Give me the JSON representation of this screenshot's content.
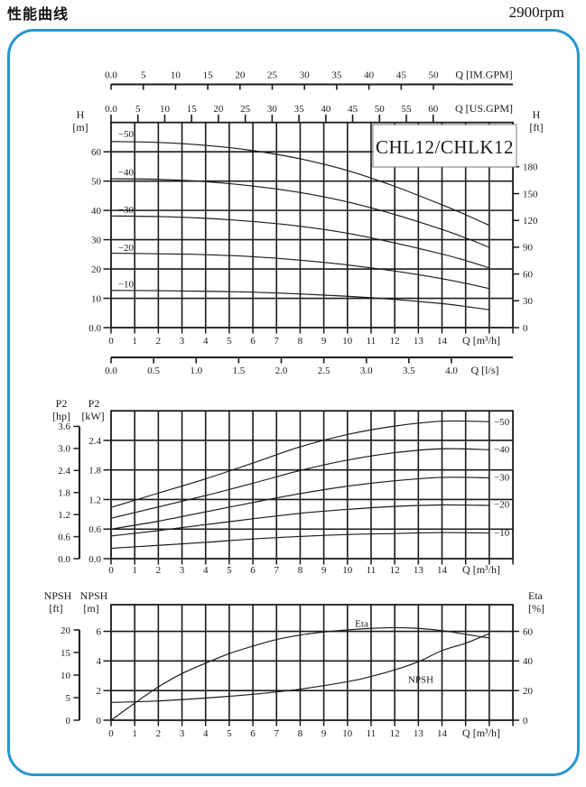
{
  "header": {
    "title": "性能曲线",
    "rpm": "2900rpm"
  },
  "model": "CHL12/CHLK12",
  "colors": {
    "panel_border": "#2697cd",
    "ink": "#1a1a1a",
    "box_border": "#777777"
  },
  "chart_data": [
    {
      "id": "head-flow",
      "type": "line",
      "title_box": "CHL12/CHLK12",
      "x_axis": {
        "label": "Q [m³/h]",
        "tick_labels": [
          "0",
          "1",
          "2",
          "3",
          "4",
          "5",
          "6",
          "7",
          "8",
          "9",
          "10",
          "11",
          "12",
          "13",
          "14"
        ],
        "tick_values": [
          0,
          1,
          2,
          3,
          4,
          5,
          6,
          7,
          8,
          9,
          10,
          11,
          12,
          13,
          14
        ],
        "range": [
          0,
          17
        ]
      },
      "top_rulers": [
        {
          "name": "imperial-gpm",
          "label": "Q [IM.GPM]",
          "tick_labels": [
            "0.0",
            "5",
            "10",
            "15",
            "20",
            "25",
            "30",
            "35",
            "40",
            "45",
            "50"
          ],
          "tick_values": [
            0,
            5,
            10,
            15,
            20,
            25,
            30,
            35,
            40,
            45,
            50
          ],
          "m3h_per_unit": 0.27276
        },
        {
          "name": "us-gpm",
          "label": "Q [US.GPM]",
          "tick_labels": [
            "0.0",
            "5",
            "10",
            "15",
            "20",
            "25",
            "30",
            "35",
            "40",
            "45",
            "50",
            "55",
            "60"
          ],
          "tick_values": [
            0,
            5,
            10,
            15,
            20,
            25,
            30,
            35,
            40,
            45,
            50,
            55,
            60
          ],
          "m3h_per_unit": 0.22712
        }
      ],
      "bottom_ruler": {
        "name": "liters-per-second",
        "label": "Q [l/s]",
        "tick_labels": [
          "0.0",
          "0.5",
          "1.0",
          "1.5",
          "2.0",
          "2.5",
          "3.0",
          "3.5",
          "4.0"
        ],
        "tick_values": [
          0,
          0.5,
          1,
          1.5,
          2,
          2.5,
          3,
          3.5,
          4
        ],
        "m3h_per_unit": 3.6
      },
      "y_axis": {
        "name": "H",
        "unit": "[m]",
        "tick_labels": [
          "0.0",
          "10",
          "20",
          "30",
          "40",
          "50",
          "60"
        ],
        "tick_values": [
          0,
          10,
          20,
          30,
          40,
          50,
          60
        ],
        "range": [
          0,
          70
        ]
      },
      "y_axis_right": {
        "name": "H",
        "unit": "[ft]",
        "tick_labels": [
          "0",
          "30",
          "60",
          "90",
          "120",
          "150",
          "180"
        ],
        "tick_values": [
          0,
          30,
          60,
          90,
          120,
          150,
          180
        ],
        "m_per_unit": 0.3048
      },
      "series": [
        {
          "label": "−10",
          "points": [
            [
              0,
              12.7
            ],
            [
              2,
              12.6
            ],
            [
              4,
              12.4
            ],
            [
              6,
              12.1
            ],
            [
              8,
              11.5
            ],
            [
              10,
              10.7
            ],
            [
              12,
              9.6
            ],
            [
              14,
              8.2
            ],
            [
              15,
              7.2
            ],
            [
              16,
              6.1
            ]
          ]
        },
        {
          "label": "−20",
          "points": [
            [
              0,
              25.4
            ],
            [
              2,
              25.2
            ],
            [
              4,
              24.9
            ],
            [
              6,
              24.2
            ],
            [
              8,
              23.0
            ],
            [
              10,
              21.4
            ],
            [
              12,
              19.3
            ],
            [
              14,
              16.7
            ],
            [
              15,
              15.1
            ],
            [
              16,
              13.3
            ]
          ]
        },
        {
          "label": "−30",
          "points": [
            [
              0,
              38.1
            ],
            [
              2,
              37.9
            ],
            [
              4,
              37.3
            ],
            [
              6,
              36.2
            ],
            [
              8,
              34.6
            ],
            [
              10,
              32.2
            ],
            [
              12,
              28.9
            ],
            [
              14,
              25.1
            ],
            [
              15,
              22.9
            ],
            [
              16,
              20.4
            ]
          ]
        },
        {
          "label": "−40",
          "points": [
            [
              0,
              50.8
            ],
            [
              2,
              50.6
            ],
            [
              4,
              49.8
            ],
            [
              6,
              48.3
            ],
            [
              8,
              46.1
            ],
            [
              10,
              42.9
            ],
            [
              12,
              38.6
            ],
            [
              14,
              33.5
            ],
            [
              15,
              30.6
            ],
            [
              16,
              27.4
            ]
          ]
        },
        {
          "label": "−50",
          "points": [
            [
              0,
              63.5
            ],
            [
              2,
              63.2
            ],
            [
              4,
              62.2
            ],
            [
              6,
              60.4
            ],
            [
              8,
              57.6
            ],
            [
              10,
              53.6
            ],
            [
              12,
              48.2
            ],
            [
              14,
              41.9
            ],
            [
              15,
              38.5
            ],
            [
              16,
              34.9
            ]
          ]
        }
      ],
      "curve_labels": [
        {
          "text": "−50",
          "q": 0.3,
          "y": 66.2
        },
        {
          "text": "−40",
          "q": 0.3,
          "y": 53.0
        },
        {
          "text": "−30",
          "q": 0.3,
          "y": 40.3
        },
        {
          "text": "−20",
          "q": 0.3,
          "y": 27.3
        },
        {
          "text": "−10",
          "q": 0.3,
          "y": 14.9
        }
      ]
    },
    {
      "id": "power",
      "type": "line",
      "x_axis": {
        "label": "Q [m³/h]",
        "tick_labels": [
          "0",
          "1",
          "2",
          "3",
          "4",
          "5",
          "6",
          "7",
          "8",
          "9",
          "10",
          "11",
          "12",
          "13",
          "14"
        ],
        "tick_values": [
          0,
          1,
          2,
          3,
          4,
          5,
          6,
          7,
          8,
          9,
          10,
          11,
          12,
          13,
          14
        ],
        "range": [
          0,
          17
        ]
      },
      "y_axis": {
        "name": "P2",
        "unit": "[kW]",
        "tick_labels": [
          "0.0",
          "0.6",
          "1.2",
          "1.8",
          "2.4"
        ],
        "tick_values": [
          0,
          0.6,
          1.2,
          1.8,
          2.4
        ],
        "range": [
          0,
          3.0
        ]
      },
      "y_ruler_left": {
        "name": "P2",
        "unit": "[hp]",
        "tick_labels": [
          "0.0",
          "0.6",
          "1.2",
          "1.8",
          "2.4",
          "3.0",
          "3.6"
        ],
        "tick_values": [
          0,
          0.6,
          1.2,
          1.8,
          2.4,
          3.0,
          3.6
        ],
        "kw_per_unit": 0.7457
      },
      "series": [
        {
          "label": "−10",
          "points": [
            [
              0,
              0.21
            ],
            [
              2,
              0.27
            ],
            [
              4,
              0.33
            ],
            [
              6,
              0.4
            ],
            [
              8,
              0.45
            ],
            [
              10,
              0.49
            ],
            [
              12,
              0.51
            ],
            [
              14,
              0.53
            ],
            [
              16,
              0.52
            ]
          ]
        },
        {
          "label": "−20",
          "points": [
            [
              0,
              0.46
            ],
            [
              2,
              0.57
            ],
            [
              4,
              0.69
            ],
            [
              6,
              0.81
            ],
            [
              8,
              0.92
            ],
            [
              10,
              1.0
            ],
            [
              12,
              1.06
            ],
            [
              14,
              1.09
            ],
            [
              16,
              1.08
            ]
          ]
        },
        {
          "label": "−30",
          "points": [
            [
              0,
              0.6
            ],
            [
              2,
              0.76
            ],
            [
              4,
              0.95
            ],
            [
              6,
              1.14
            ],
            [
              8,
              1.32
            ],
            [
              10,
              1.47
            ],
            [
              12,
              1.58
            ],
            [
              14,
              1.65
            ],
            [
              16,
              1.64
            ]
          ]
        },
        {
          "label": "−40",
          "points": [
            [
              0,
              0.82
            ],
            [
              2,
              1.05
            ],
            [
              4,
              1.28
            ],
            [
              6,
              1.53
            ],
            [
              8,
              1.79
            ],
            [
              10,
              2.0
            ],
            [
              12,
              2.15
            ],
            [
              14,
              2.23
            ],
            [
              16,
              2.21
            ]
          ]
        },
        {
          "label": "−50",
          "points": [
            [
              0,
              1.04
            ],
            [
              2,
              1.33
            ],
            [
              4,
              1.62
            ],
            [
              6,
              1.94
            ],
            [
              8,
              2.27
            ],
            [
              10,
              2.52
            ],
            [
              12,
              2.69
            ],
            [
              14,
              2.79
            ],
            [
              16,
              2.78
            ]
          ]
        }
      ],
      "curve_labels": [
        {
          "text": "−50",
          "y": 2.78
        },
        {
          "text": "−40",
          "y": 2.22
        },
        {
          "text": "−30",
          "y": 1.65
        },
        {
          "text": "−20",
          "y": 1.1
        },
        {
          "text": "−10",
          "y": 0.53
        }
      ]
    },
    {
      "id": "npsh-eta",
      "type": "line",
      "x_axis": {
        "label": "Q [m³/h]",
        "tick_labels": [
          "0",
          "1",
          "2",
          "3",
          "4",
          "5",
          "6",
          "7",
          "8",
          "9",
          "10",
          "11",
          "12",
          "13",
          "14"
        ],
        "tick_values": [
          0,
          1,
          2,
          3,
          4,
          5,
          6,
          7,
          8,
          9,
          10,
          11,
          12,
          13,
          14
        ],
        "range": [
          0,
          17
        ]
      },
      "y_axis": {
        "name": "NPSH",
        "unit": "[m]",
        "tick_labels": [
          "0",
          "2",
          "4",
          "6"
        ],
        "tick_values": [
          0,
          2,
          4,
          6
        ],
        "range": [
          0,
          7.8
        ]
      },
      "y_ruler_left": {
        "name": "NPSH",
        "unit": "[ft]",
        "tick_labels": [
          "0",
          "5",
          "10",
          "15",
          "20"
        ],
        "tick_values": [
          0,
          5,
          10,
          15,
          20
        ],
        "m_per_unit": 0.3048
      },
      "y_axis_right": {
        "name": "Eta",
        "unit": "[%]",
        "tick_labels": [
          "0",
          "20",
          "40",
          "60"
        ],
        "tick_values": [
          0,
          20,
          40,
          60
        ],
        "m_per_unit": 0.1
      },
      "series": [
        {
          "label": "Eta",
          "value_unit": "%",
          "m_per_unit": 0.1,
          "points": [
            [
              0,
              0
            ],
            [
              1,
              11.5
            ],
            [
              2,
              22.5
            ],
            [
              3,
              31.5
            ],
            [
              4,
              38.5
            ],
            [
              5,
              45
            ],
            [
              6,
              50
            ],
            [
              7,
              54.5
            ],
            [
              8,
              57.5
            ],
            [
              9,
              59.5
            ],
            [
              10,
              61
            ],
            [
              11,
              62
            ],
            [
              12,
              62.5
            ],
            [
              13,
              62
            ],
            [
              14,
              60.5
            ],
            [
              15,
              58
            ],
            [
              16,
              55.5
            ]
          ]
        },
        {
          "label": "NPSH",
          "value_unit": "m",
          "m_per_unit": 1,
          "points": [
            [
              0,
              1.2
            ],
            [
              2,
              1.3
            ],
            [
              4,
              1.5
            ],
            [
              6,
              1.75
            ],
            [
              8,
              2.1
            ],
            [
              10,
              2.6
            ],
            [
              11,
              2.95
            ],
            [
              12,
              3.4
            ],
            [
              13,
              3.95
            ],
            [
              14,
              4.7
            ],
            [
              15,
              5.2
            ],
            [
              16,
              5.85
            ]
          ]
        }
      ],
      "curve_labels": [
        {
          "text": "Eta",
          "q": 10.6,
          "y": 6.55
        },
        {
          "text": "NPSH",
          "q": 13.1,
          "y": 2.75
        }
      ]
    }
  ]
}
